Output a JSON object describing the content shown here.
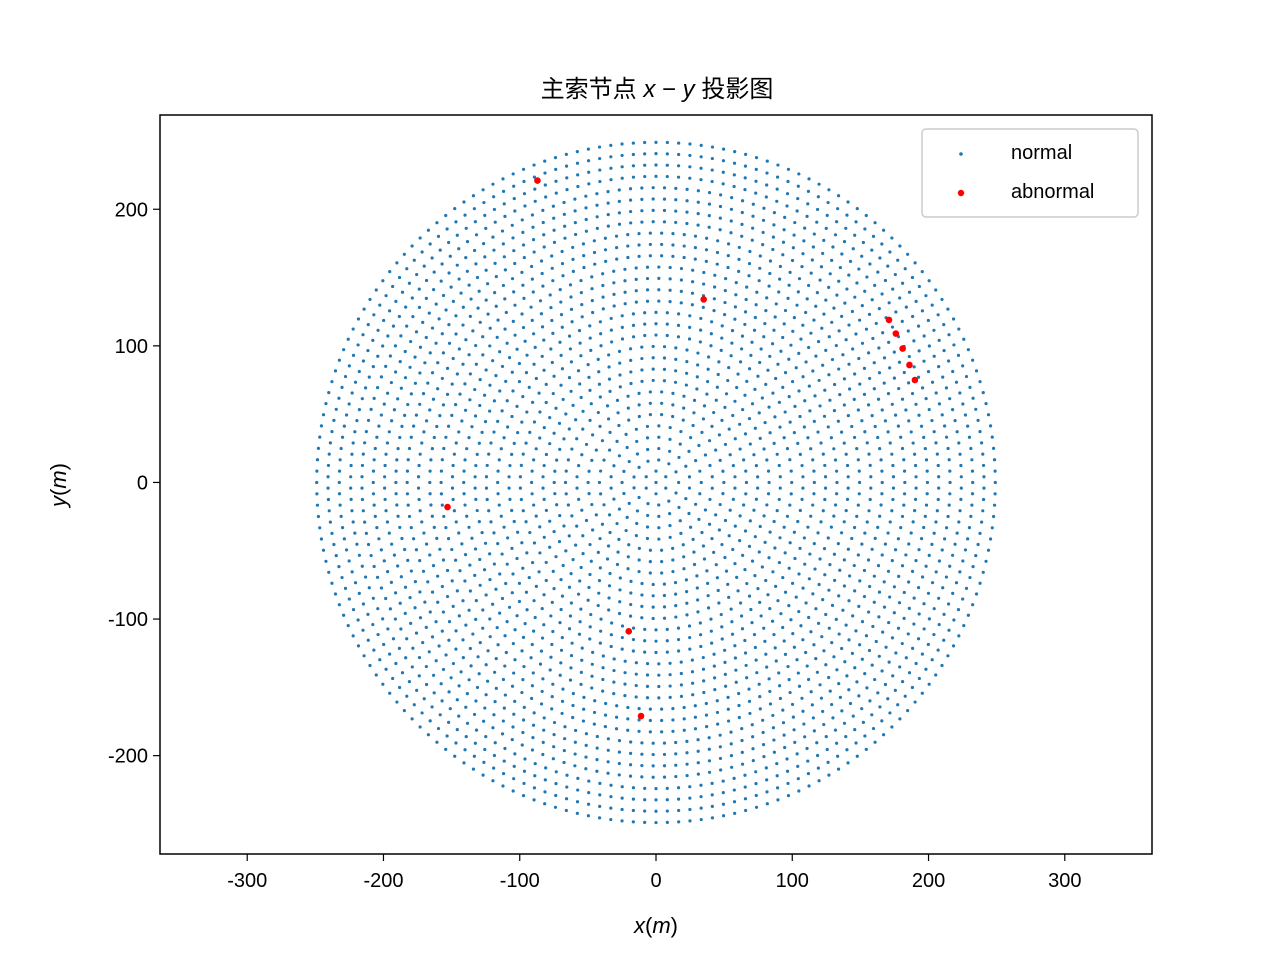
{
  "chart_data": {
    "type": "scatter",
    "title": "主索节点 x − y 投影图",
    "title_parts": {
      "prefix": "主索节点 ",
      "var1": "x",
      "op": " − ",
      "var2": "y",
      "suffix": " 投影图"
    },
    "xlabel": "x(m)",
    "xlabel_parts": {
      "var": "x",
      "paren_open": "(",
      "unit": "m",
      "paren_close": ")"
    },
    "ylabel": "y(m)",
    "ylabel_parts": {
      "var": "y",
      "paren_open": "(",
      "unit": "m",
      "paren_close": ")"
    },
    "xlim": [
      -364,
      364
    ],
    "ylim": [
      -272,
      269
    ],
    "xticks": [
      -300,
      -200,
      -100,
      0,
      100,
      200,
      300
    ],
    "yticks": [
      -200,
      -100,
      0,
      100,
      200
    ],
    "xtick_labels": [
      "-300",
      "-200",
      "-100",
      "0",
      "100",
      "200",
      "300"
    ],
    "ytick_labels": [
      "-200",
      "-100",
      "0",
      "100",
      "200"
    ],
    "grid": false,
    "legend_position": "top-right",
    "series": [
      {
        "name": "normal",
        "color": "#1f77b4",
        "pattern": "concentric hexagonal-like rings of nodes filling a disc",
        "radius": 249,
        "ring_spacing": 8.3,
        "ring_count": 30
      },
      {
        "name": "abnormal",
        "color": "#ff0000",
        "points": [
          [
            -87,
            221
          ],
          [
            35,
            134
          ],
          [
            171,
            119
          ],
          [
            176,
            109
          ],
          [
            181,
            98
          ],
          [
            186,
            86
          ],
          [
            190,
            75
          ],
          [
            -153,
            -18
          ],
          [
            -20,
            -109
          ],
          [
            -11,
            -171
          ]
        ]
      }
    ]
  }
}
